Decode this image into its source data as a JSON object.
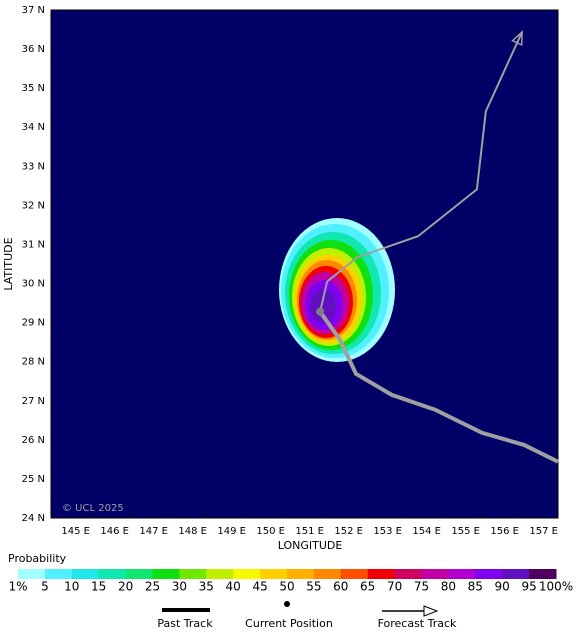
{
  "chart_data": {
    "type": "map",
    "x_label": "LONGITUDE",
    "y_label": "LATITUDE",
    "credit": "© UCL 2025",
    "xlim": [
      144,
      157
    ],
    "ylim": [
      24,
      37
    ],
    "xticks": [
      {
        "value": 145,
        "label": "145 E"
      },
      {
        "value": 146,
        "label": "146 E"
      },
      {
        "value": 147,
        "label": "147 E"
      },
      {
        "value": 148,
        "label": "148 E"
      },
      {
        "value": 149,
        "label": "149 E"
      },
      {
        "value": 150,
        "label": "150 E"
      },
      {
        "value": 151,
        "label": "151 E"
      },
      {
        "value": 152,
        "label": "152 E"
      },
      {
        "value": 153,
        "label": "153 E"
      },
      {
        "value": 154,
        "label": "154 E"
      },
      {
        "value": 155,
        "label": "155 E"
      },
      {
        "value": 156,
        "label": "156 E"
      },
      {
        "value": 157,
        "label": "157 E"
      }
    ],
    "yticks": [
      {
        "value": 24,
        "label": "24 N"
      },
      {
        "value": 25,
        "label": "25 N"
      },
      {
        "value": 26,
        "label": "26 N"
      },
      {
        "value": 27,
        "label": "27 N"
      },
      {
        "value": 28,
        "label": "28 N"
      },
      {
        "value": 29,
        "label": "29 N"
      },
      {
        "value": 30,
        "label": "30 N"
      },
      {
        "value": 31,
        "label": "31 N"
      },
      {
        "value": 32,
        "label": "32 N"
      },
      {
        "value": 33,
        "label": "33 N"
      },
      {
        "value": 34,
        "label": "34 N"
      },
      {
        "value": 35,
        "label": "35 N"
      },
      {
        "value": 36,
        "label": "36 N"
      },
      {
        "value": 37,
        "label": "37 N"
      }
    ],
    "past_track": {
      "name": "Past Track",
      "color": "#a0a0a0",
      "lon": [
        157.0,
        156.13,
        155.05,
        153.85,
        152.74,
        151.82,
        151.41,
        150.9
      ],
      "lat": [
        25.44,
        25.87,
        26.18,
        26.77,
        27.15,
        27.69,
        28.56,
        29.28
      ]
    },
    "current_position": {
      "name": "Current Position",
      "color": "#808080",
      "lon": 150.9,
      "lat": 29.28
    },
    "forecast_track": {
      "name": "Forecast Track",
      "color": "#a0a0a0",
      "lon": [
        150.9,
        151.08,
        151.85,
        153.41,
        154.92,
        155.15,
        156.08
      ],
      "lat": [
        29.28,
        30.05,
        30.67,
        31.21,
        32.41,
        34.41,
        36.44
      ]
    },
    "colorbar": {
      "title": "Probability",
      "ticks": [
        {
          "value": 1,
          "label": "1%"
        },
        5,
        10,
        15,
        20,
        25,
        30,
        35,
        40,
        45,
        50,
        55,
        60,
        65,
        70,
        75,
        80,
        85,
        90,
        95,
        {
          "value": 100,
          "label": "100%"
        }
      ],
      "colors": [
        "#a0ffff",
        "#50f0ff",
        "#20e8e8",
        "#10e8b0",
        "#10e870",
        "#10e010",
        "#70e800",
        "#c0f000",
        "#f8f800",
        "#ffd000",
        "#ffb000",
        "#ff8800",
        "#ff5000",
        "#f00000",
        "#d00060",
        "#c000a0",
        "#b000d0",
        "#8000f0",
        "#6010c0",
        "#500060"
      ]
    }
  }
}
